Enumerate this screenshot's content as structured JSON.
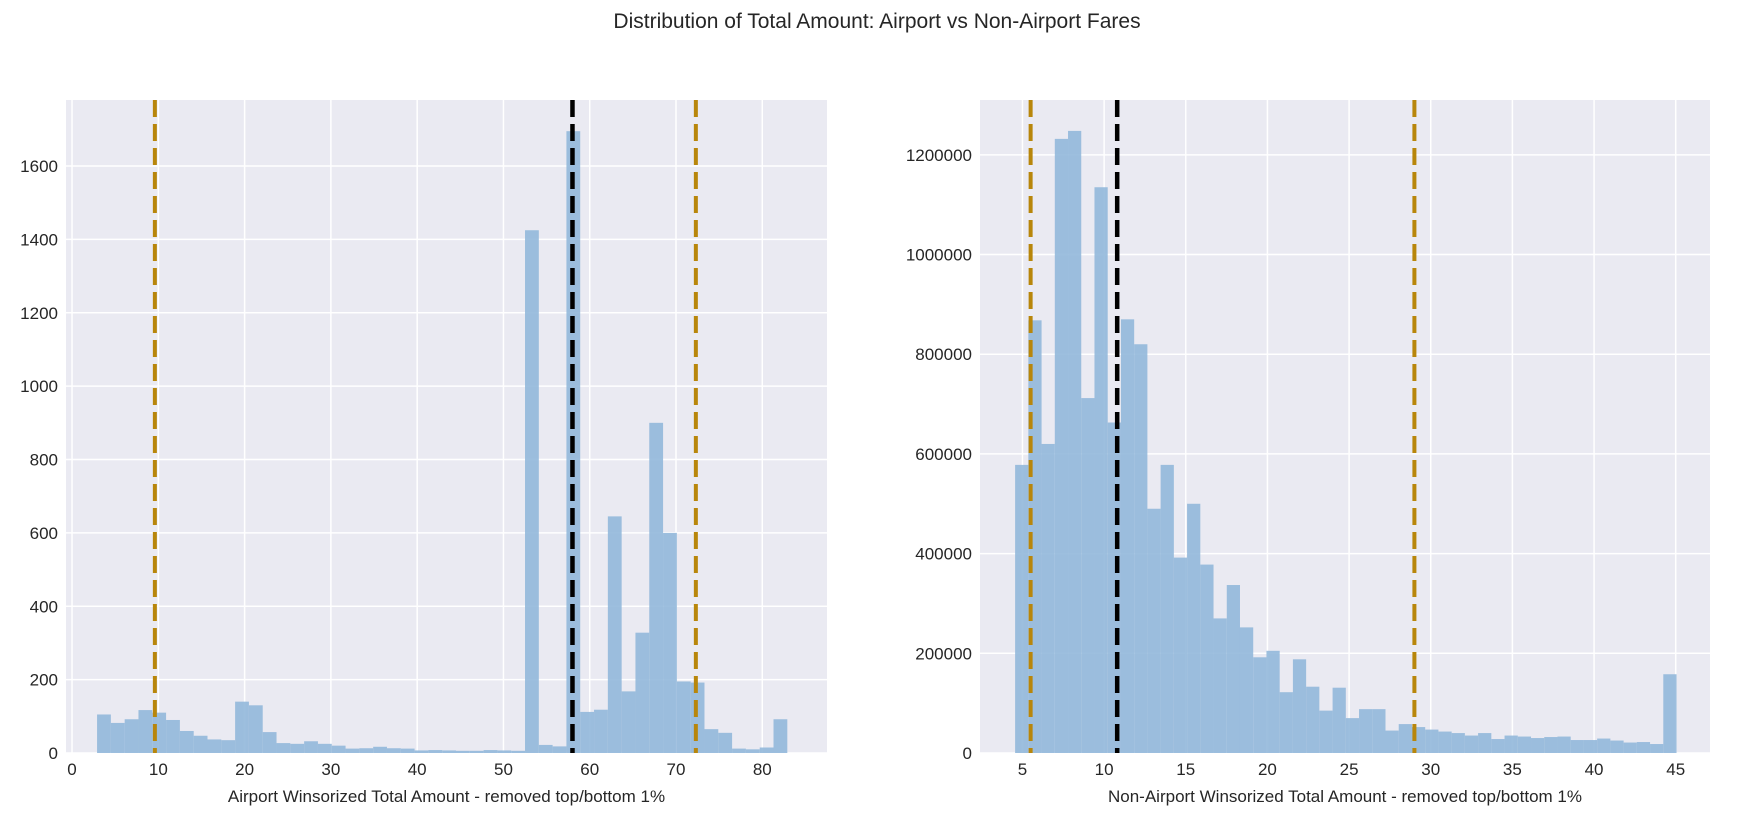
{
  "figure": {
    "title": "Distribution of Total Amount: Airport vs Non-Airport Fares"
  },
  "colors": {
    "background": "#eaeaf2",
    "grid": "#ffffff",
    "bar": "#8fb6d9",
    "percentile_line": "#b8860b",
    "median_line": "#000000",
    "text": "#262626"
  },
  "chart_data": [
    {
      "type": "bar",
      "subtype": "histogram",
      "xlabel": "Airport Winsorized Total Amount - removed top/bottom 1%",
      "ylabel": "",
      "xlim": [
        -0.7,
        87.5
      ],
      "ylim": [
        0,
        1780
      ],
      "grid": true,
      "xticks": [
        0,
        10,
        20,
        30,
        40,
        50,
        60,
        70,
        80
      ],
      "yticks": [
        0,
        200,
        400,
        600,
        800,
        1000,
        1200,
        1400,
        1600
      ],
      "bin_start": 2.9,
      "bin_width": 1.6,
      "values": [
        105,
        82,
        92,
        117,
        110,
        90,
        60,
        47,
        37,
        35,
        140,
        130,
        57,
        27,
        25,
        32,
        25,
        20,
        12,
        13,
        17,
        13,
        12,
        7,
        8,
        7,
        6,
        6,
        8,
        7,
        6,
        1425,
        22,
        18,
        1695,
        112,
        118,
        645,
        168,
        328,
        900,
        600,
        195,
        192,
        65,
        55,
        12,
        10,
        15,
        92
      ],
      "vlines": [
        {
          "x": 9.6,
          "style": "percentile"
        },
        {
          "x": 58.0,
          "style": "median"
        },
        {
          "x": 72.3,
          "style": "percentile"
        }
      ]
    },
    {
      "type": "bar",
      "subtype": "histogram",
      "xlabel": "Non-Airport Winsorized Total Amount - removed top/bottom 1%",
      "ylabel": "",
      "xlim": [
        2.4,
        47.1
      ],
      "ylim": [
        0,
        1310000
      ],
      "grid": true,
      "xticks": [
        5,
        10,
        15,
        20,
        25,
        30,
        35,
        40,
        45
      ],
      "yticks": [
        0,
        200000,
        400000,
        600000,
        800000,
        1000000,
        1200000
      ],
      "bin_start": 4.55,
      "bin_width": 0.81,
      "values": [
        578000,
        868000,
        620000,
        1232000,
        1248000,
        712000,
        1135000,
        663000,
        870000,
        820000,
        490000,
        578000,
        392000,
        500000,
        378000,
        270000,
        337000,
        252000,
        192000,
        205000,
        122000,
        188000,
        133000,
        85000,
        131000,
        70000,
        88000,
        88000,
        45000,
        58000,
        52000,
        47000,
        43000,
        40000,
        35000,
        40000,
        28000,
        35000,
        33000,
        30000,
        32000,
        33000,
        26000,
        26000,
        29000,
        25000,
        21000,
        22000,
        18000,
        158000
      ],
      "vlines": [
        {
          "x": 5.5,
          "style": "percentile"
        },
        {
          "x": 10.8,
          "style": "median"
        },
        {
          "x": 29.0,
          "style": "percentile"
        }
      ]
    }
  ]
}
